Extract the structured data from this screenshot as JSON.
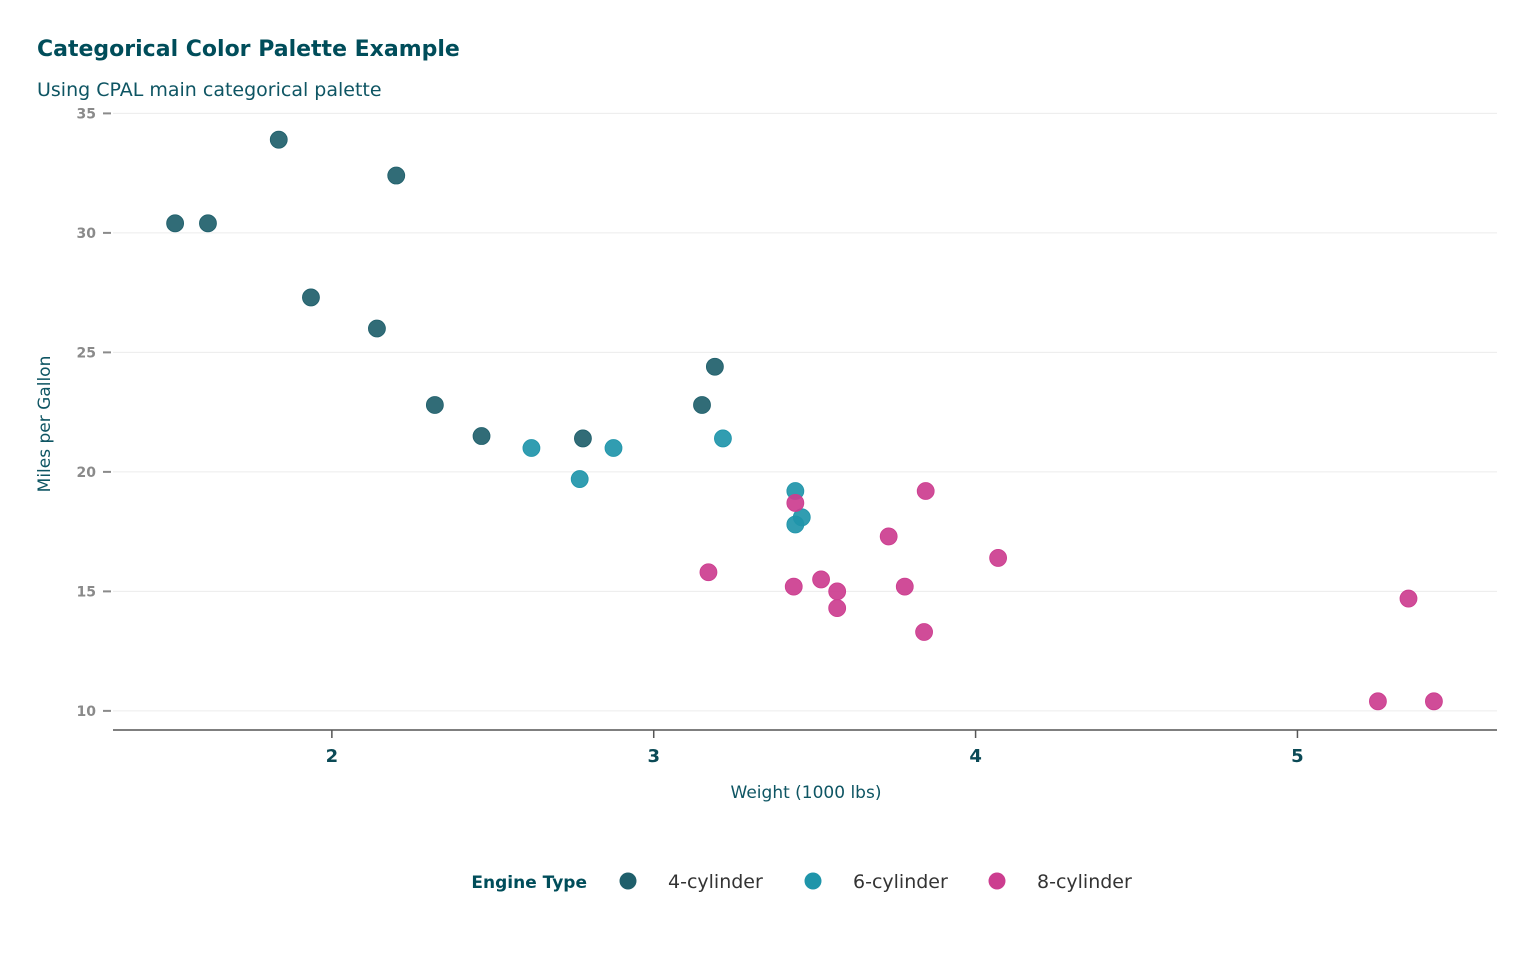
{
  "chart_data": {
    "type": "scatter",
    "title": "Categorical Color Palette Example",
    "subtitle": "Using CPAL main categorical palette",
    "xlabel": "Weight (1000 lbs)",
    "ylabel": "Miles per Gallon",
    "xlim": [
      1.32,
      5.62
    ],
    "ylim": [
      9.2,
      35.1
    ],
    "xticks": [
      2,
      3,
      4,
      5
    ],
    "yticks": [
      10,
      15,
      20,
      25,
      30,
      35
    ],
    "grid": "horizontal",
    "legend": {
      "title": "Engine Type",
      "position": "bottom"
    },
    "series": [
      {
        "name": "4-cylinder",
        "color": "#1f5f6b",
        "x": [
          2.32,
          3.19,
          3.15,
          2.2,
          1.615,
          1.835,
          2.465,
          1.935,
          2.14,
          1.513,
          2.78
        ],
        "y": [
          22.8,
          24.4,
          22.8,
          32.4,
          30.4,
          33.9,
          21.5,
          27.3,
          26.0,
          30.4,
          21.4
        ]
      },
      {
        "name": "6-cylinder",
        "color": "#1f95aa",
        "x": [
          2.62,
          2.875,
          3.215,
          3.46,
          3.44,
          3.44,
          2.77
        ],
        "y": [
          21.0,
          21.0,
          21.4,
          18.1,
          19.2,
          17.8,
          19.7
        ]
      },
      {
        "name": "8-cylinder",
        "color": "#cc3d8f",
        "x": [
          3.44,
          3.57,
          4.07,
          3.73,
          3.78,
          5.25,
          5.424,
          5.345,
          3.52,
          3.435,
          3.84,
          3.845,
          3.17,
          3.57
        ],
        "y": [
          18.7,
          14.3,
          16.4,
          17.3,
          15.2,
          10.4,
          10.4,
          14.7,
          15.5,
          15.2,
          13.3,
          19.2,
          15.8,
          15.0
        ]
      }
    ]
  }
}
